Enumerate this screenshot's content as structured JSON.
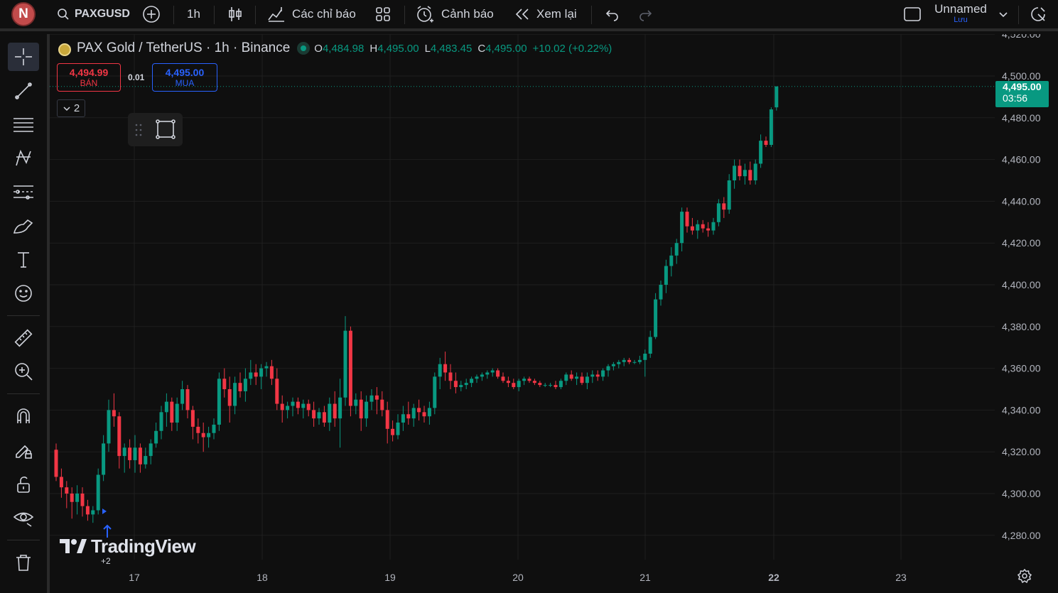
{
  "topbar": {
    "avatar_letter": "N",
    "symbol": "PAXGUSD",
    "interval": "1h",
    "indicators_label": "Các chỉ báo",
    "alerts_label": "Cảnh báo",
    "replay_label": "Xem lại",
    "layout_name": "Unnamed",
    "save_label": "Lưu"
  },
  "legend": {
    "title": "PAX Gold / TetherUS · 1h · Binance",
    "o_label": "O",
    "o_value": "4,484.98",
    "h_label": "H",
    "h_value": "4,495.00",
    "l_label": "L",
    "l_value": "4,483.45",
    "c_label": "C",
    "c_value": "4,495.00",
    "change": "+10.02 (+0.22%)"
  },
  "trade": {
    "sell_price": "4,494.99",
    "sell_label": "BÁN",
    "spread": "0.01",
    "buy_price": "4,495.00",
    "buy_label": "MUA"
  },
  "collapse_count": "2",
  "price_badge": {
    "price": "4,495.00",
    "countdown": "03:56"
  },
  "watermark": "TradingView",
  "marker_label": "+2",
  "colors": {
    "up": "#089981",
    "down": "#f23645",
    "accent": "#2962ff",
    "bg": "#0f0f0f"
  },
  "chart_data": {
    "type": "candlestick",
    "symbol": "PAXGUSD",
    "interval": "1h",
    "yticks": [
      "4,280.00",
      "4,300.00",
      "4,320.00",
      "4,340.00",
      "4,360.00",
      "4,380.00",
      "4,400.00",
      "4,420.00",
      "4,440.00",
      "4,460.00",
      "4,480.00",
      "4,500.00",
      "4,520.00"
    ],
    "xticks": [
      "17",
      "18",
      "19",
      "20",
      "21",
      "22",
      "23"
    ],
    "ylim": [
      4268,
      4520
    ],
    "grid": true,
    "last_price": 4495.0,
    "ohlc": [
      [
        4321,
        4324,
        4306,
        4308
      ],
      [
        4308,
        4312,
        4298,
        4303
      ],
      [
        4303,
        4306,
        4293,
        4300
      ],
      [
        4300,
        4303,
        4288,
        4296
      ],
      [
        4296,
        4304,
        4290,
        4300
      ],
      [
        4300,
        4303,
        4289,
        4294
      ],
      [
        4294,
        4297,
        4287,
        4290
      ],
      [
        4290,
        4294,
        4286,
        4292
      ],
      [
        4292,
        4312,
        4290,
        4309
      ],
      [
        4309,
        4328,
        4306,
        4324
      ],
      [
        4324,
        4345,
        4320,
        4340
      ],
      [
        4340,
        4348,
        4332,
        4337
      ],
      [
        4337,
        4339,
        4312,
        4318
      ],
      [
        4318,
        4324,
        4310,
        4322
      ],
      [
        4322,
        4326,
        4312,
        4316
      ],
      [
        4316,
        4328,
        4310,
        4322
      ],
      [
        4322,
        4324,
        4310,
        4314
      ],
      [
        4314,
        4322,
        4312,
        4318
      ],
      [
        4318,
        4326,
        4314,
        4324
      ],
      [
        4324,
        4334,
        4322,
        4330
      ],
      [
        4330,
        4342,
        4326,
        4339
      ],
      [
        4339,
        4348,
        4332,
        4344
      ],
      [
        4344,
        4346,
        4330,
        4334
      ],
      [
        4334,
        4346,
        4330,
        4343
      ],
      [
        4343,
        4354,
        4340,
        4350
      ],
      [
        4350,
        4352,
        4336,
        4340
      ],
      [
        4340,
        4342,
        4326,
        4332
      ],
      [
        4332,
        4336,
        4324,
        4329
      ],
      [
        4329,
        4334,
        4320,
        4327
      ],
      [
        4327,
        4332,
        4322,
        4329
      ],
      [
        4329,
        4336,
        4326,
        4333
      ],
      [
        4333,
        4358,
        4330,
        4355
      ],
      [
        4355,
        4360,
        4346,
        4350
      ],
      [
        4350,
        4356,
        4334,
        4342
      ],
      [
        4342,
        4356,
        4338,
        4353
      ],
      [
        4353,
        4358,
        4346,
        4349
      ],
      [
        4349,
        4360,
        4344,
        4355
      ],
      [
        4355,
        4364,
        4352,
        4358
      ],
      [
        4358,
        4362,
        4352,
        4356
      ],
      [
        4356,
        4362,
        4350,
        4360
      ],
      [
        4360,
        4363,
        4356,
        4361
      ],
      [
        4361,
        4364,
        4352,
        4355
      ],
      [
        4355,
        4360,
        4340,
        4343
      ],
      [
        4343,
        4347,
        4334,
        4340
      ],
      [
        4340,
        4344,
        4336,
        4342
      ],
      [
        4342,
        4346,
        4337,
        4344
      ],
      [
        4344,
        4346,
        4338,
        4341
      ],
      [
        4341,
        4345,
        4336,
        4343
      ],
      [
        4343,
        4345,
        4337,
        4340
      ],
      [
        4340,
        4344,
        4332,
        4336
      ],
      [
        4336,
        4341,
        4333,
        4339
      ],
      [
        4339,
        4342,
        4332,
        4334
      ],
      [
        4334,
        4346,
        4330,
        4343
      ],
      [
        4343,
        4349,
        4332,
        4336
      ],
      [
        4336,
        4355,
        4322,
        4346
      ],
      [
        4346,
        4385,
        4342,
        4378
      ],
      [
        4378,
        4380,
        4337,
        4342
      ],
      [
        4342,
        4348,
        4338,
        4345
      ],
      [
        4345,
        4349,
        4330,
        4336
      ],
      [
        4336,
        4347,
        4332,
        4344
      ],
      [
        4344,
        4350,
        4340,
        4347
      ],
      [
        4347,
        4351,
        4338,
        4345
      ],
      [
        4345,
        4349,
        4337,
        4340
      ],
      [
        4340,
        4344,
        4324,
        4331
      ],
      [
        4331,
        4335,
        4325,
        4328
      ],
      [
        4328,
        4338,
        4326,
        4334
      ],
      [
        4334,
        4342,
        4330,
        4338
      ],
      [
        4338,
        4344,
        4333,
        4336
      ],
      [
        4336,
        4343,
        4332,
        4341
      ],
      [
        4341,
        4345,
        4335,
        4339
      ],
      [
        4339,
        4342,
        4334,
        4337
      ],
      [
        4337,
        4344,
        4333,
        4341
      ],
      [
        4341,
        4358,
        4338,
        4356
      ],
      [
        4356,
        4365,
        4350,
        4362
      ],
      [
        4362,
        4368,
        4354,
        4358
      ],
      [
        4358,
        4362,
        4350,
        4354
      ],
      [
        4354,
        4358,
        4348,
        4351
      ],
      [
        4351,
        4354,
        4349,
        4352
      ],
      [
        4352,
        4355,
        4350,
        4353
      ],
      [
        4353,
        4356,
        4351,
        4355
      ],
      [
        4355,
        4357,
        4353,
        4356
      ],
      [
        4356,
        4358,
        4354,
        4357
      ],
      [
        4357,
        4359,
        4355,
        4358
      ],
      [
        4358,
        4360,
        4356,
        4359
      ],
      [
        4359,
        4360,
        4355,
        4356
      ],
      [
        4356,
        4358,
        4353,
        4354
      ],
      [
        4354,
        4356,
        4351,
        4353
      ],
      [
        4353,
        4355,
        4350,
        4351
      ],
      [
        4351,
        4355,
        4349,
        4354
      ],
      [
        4354,
        4356,
        4352,
        4355
      ],
      [
        4355,
        4356,
        4353,
        4354
      ],
      [
        4354,
        4355,
        4352,
        4353
      ],
      [
        4353,
        4354,
        4351,
        4352
      ],
      [
        4352,
        4353,
        4351,
        4352
      ],
      [
        4352,
        4353,
        4351,
        4352
      ],
      [
        4352,
        4354,
        4350,
        4351
      ],
      [
        4351,
        4355,
        4350,
        4354
      ],
      [
        4354,
        4358,
        4352,
        4357
      ],
      [
        4357,
        4359,
        4354,
        4355
      ],
      [
        4355,
        4358,
        4352,
        4356
      ],
      [
        4356,
        4358,
        4352,
        4353
      ],
      [
        4353,
        4358,
        4350,
        4356
      ],
      [
        4356,
        4359,
        4353,
        4357
      ],
      [
        4357,
        4359,
        4354,
        4356
      ],
      [
        4356,
        4360,
        4354,
        4359
      ],
      [
        4359,
        4362,
        4356,
        4361
      ],
      [
        4361,
        4363,
        4359,
        4362
      ],
      [
        4362,
        4364,
        4360,
        4363
      ],
      [
        4363,
        4365,
        4361,
        4364
      ],
      [
        4364,
        4365,
        4362,
        4363
      ],
      [
        4363,
        4364,
        4362,
        4363
      ],
      [
        4363,
        4366,
        4362,
        4364
      ],
      [
        4364,
        4369,
        4356,
        4367
      ],
      [
        4367,
        4378,
        4365,
        4375
      ],
      [
        4375,
        4396,
        4374,
        4393
      ],
      [
        4393,
        4402,
        4390,
        4400
      ],
      [
        4400,
        4412,
        4396,
        4409
      ],
      [
        4409,
        4418,
        4404,
        4414
      ],
      [
        4414,
        4422,
        4410,
        4420
      ],
      [
        4420,
        4437,
        4416,
        4435
      ],
      [
        4435,
        4437,
        4425,
        4428
      ],
      [
        4428,
        4432,
        4424,
        4426
      ],
      [
        4426,
        4431,
        4422,
        4429
      ],
      [
        4429,
        4431,
        4425,
        4427
      ],
      [
        4427,
        4430,
        4423,
        4426
      ],
      [
        4426,
        4432,
        4424,
        4430
      ],
      [
        4430,
        4441,
        4428,
        4439
      ],
      [
        4439,
        4442,
        4432,
        4436
      ],
      [
        4436,
        4453,
        4434,
        4450
      ],
      [
        4450,
        4460,
        4446,
        4457
      ],
      [
        4457,
        4460,
        4450,
        4452
      ],
      [
        4452,
        4458,
        4448,
        4455
      ],
      [
        4455,
        4459,
        4448,
        4450
      ],
      [
        4450,
        4460,
        4448,
        4458
      ],
      [
        4458,
        4472,
        4456,
        4469
      ],
      [
        4469,
        4471,
        4466,
        4467
      ],
      [
        4467,
        4485,
        4466,
        4484
      ],
      [
        4484.98,
        4495,
        4483.45,
        4495
      ]
    ]
  }
}
